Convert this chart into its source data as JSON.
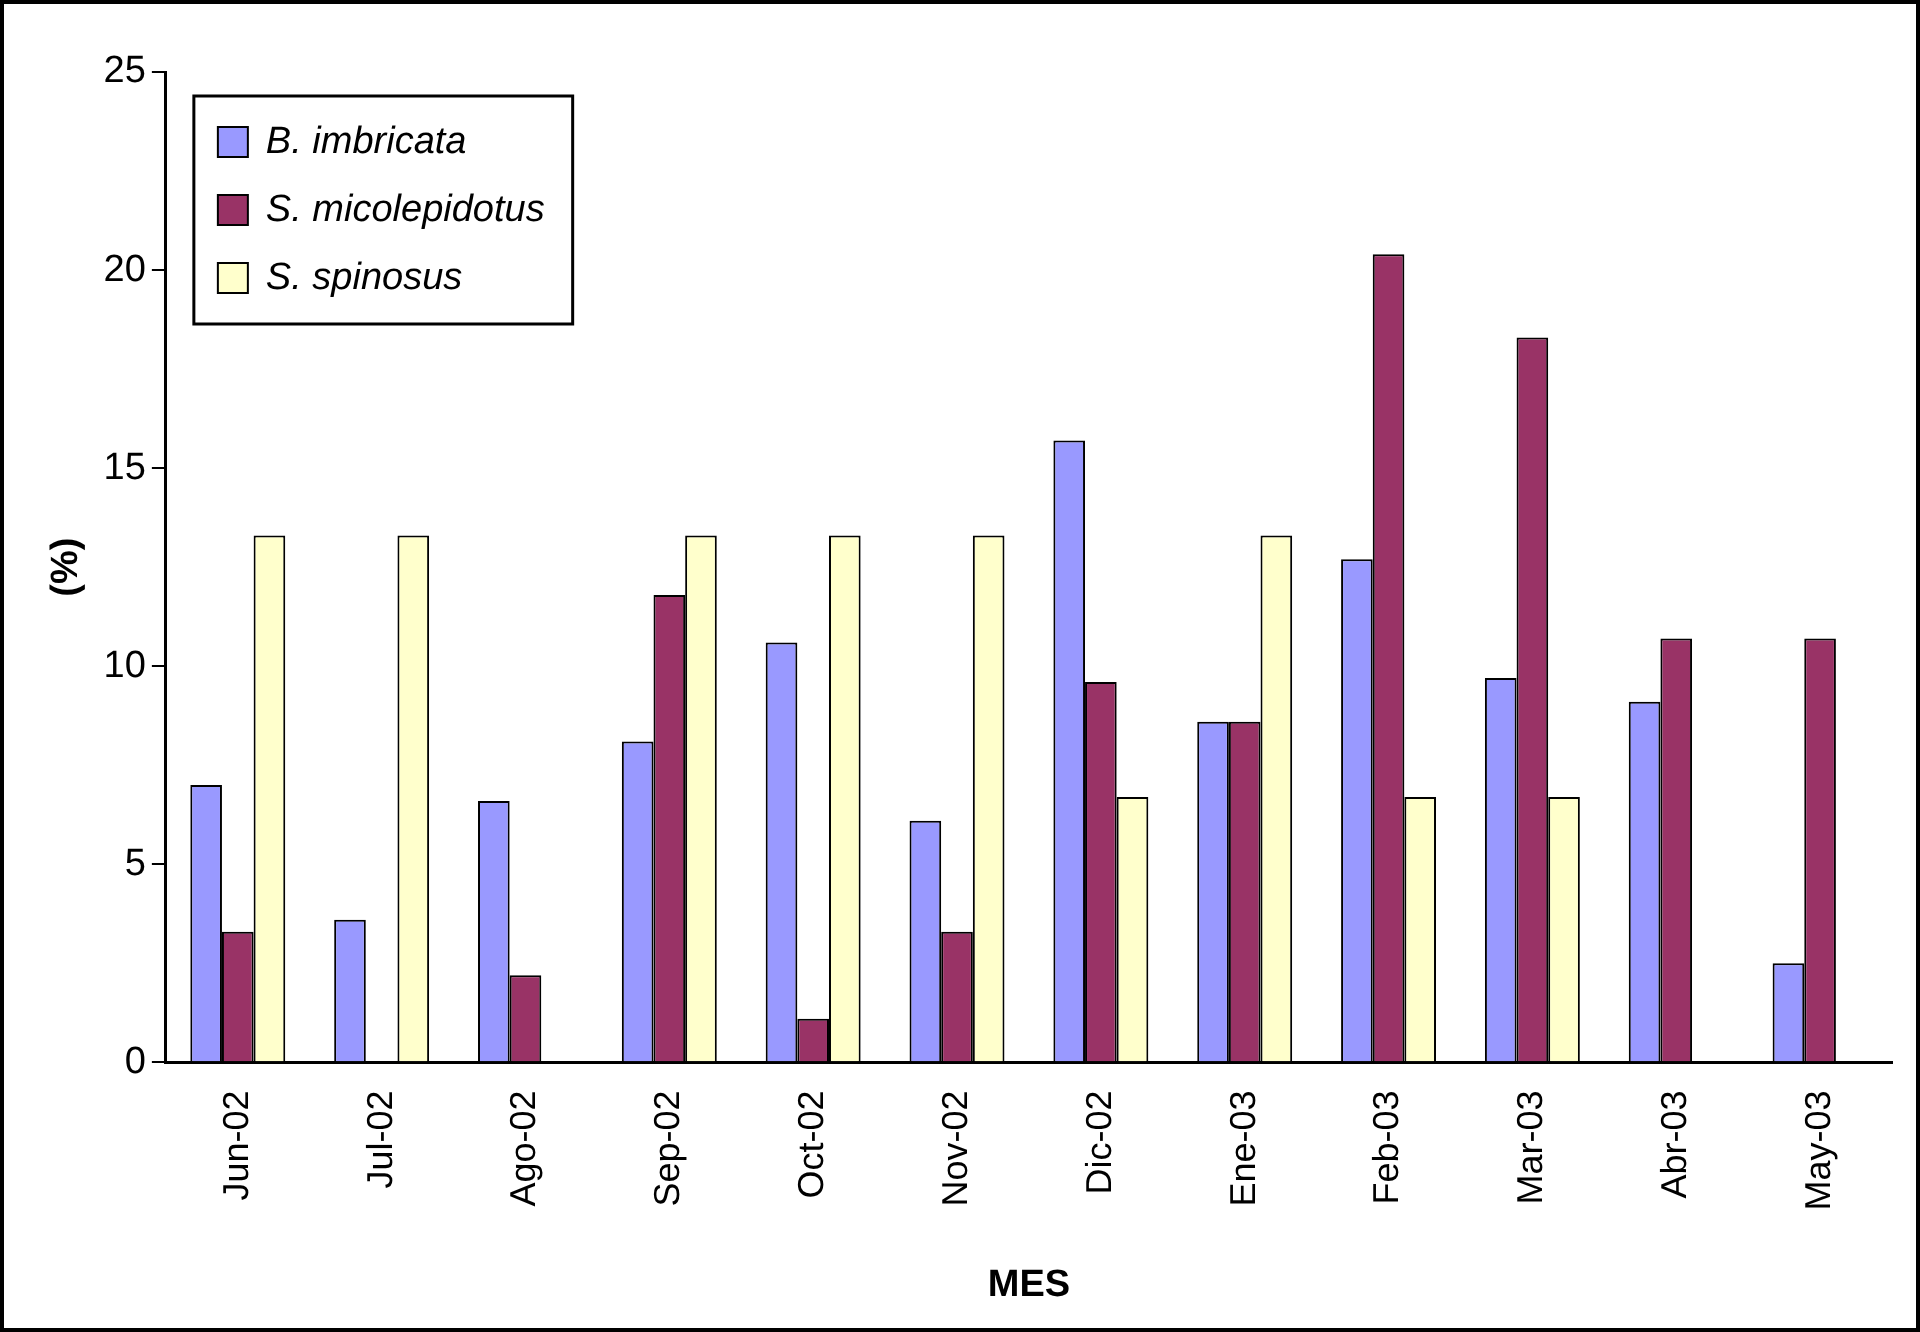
{
  "chart_data": {
    "type": "bar",
    "xlabel": "MES",
    "ylabel": "(%)",
    "categories": [
      "Jun-02",
      "Jul-02",
      "Ago-02",
      "Sep-02",
      "Oct-02",
      "Nov-02",
      "Dic-02",
      "Ene-03",
      "Feb-03",
      "Mar-03",
      "Abr-03",
      "May-03"
    ],
    "series": [
      {
        "name": "B. imbricata",
        "color": "#9999ff",
        "values": [
          7.0,
          3.6,
          6.6,
          8.1,
          10.6,
          6.1,
          15.7,
          8.6,
          12.7,
          9.7,
          9.1,
          2.5
        ]
      },
      {
        "name": "S. micolepidotus",
        "color": "#993366",
        "values": [
          3.3,
          0,
          2.2,
          11.8,
          1.1,
          3.3,
          9.6,
          8.6,
          20.4,
          18.3,
          10.7,
          10.7
        ]
      },
      {
        "name": "S. spinosus",
        "color": "#ffffcc",
        "values": [
          13.3,
          13.3,
          0,
          13.3,
          13.3,
          13.3,
          6.7,
          13.3,
          6.7,
          6.7,
          0,
          0
        ]
      }
    ],
    "ylim": [
      0,
      25
    ],
    "yticks": [
      0,
      5,
      10,
      15,
      20,
      25
    ],
    "grid": false,
    "legend": "top left"
  }
}
